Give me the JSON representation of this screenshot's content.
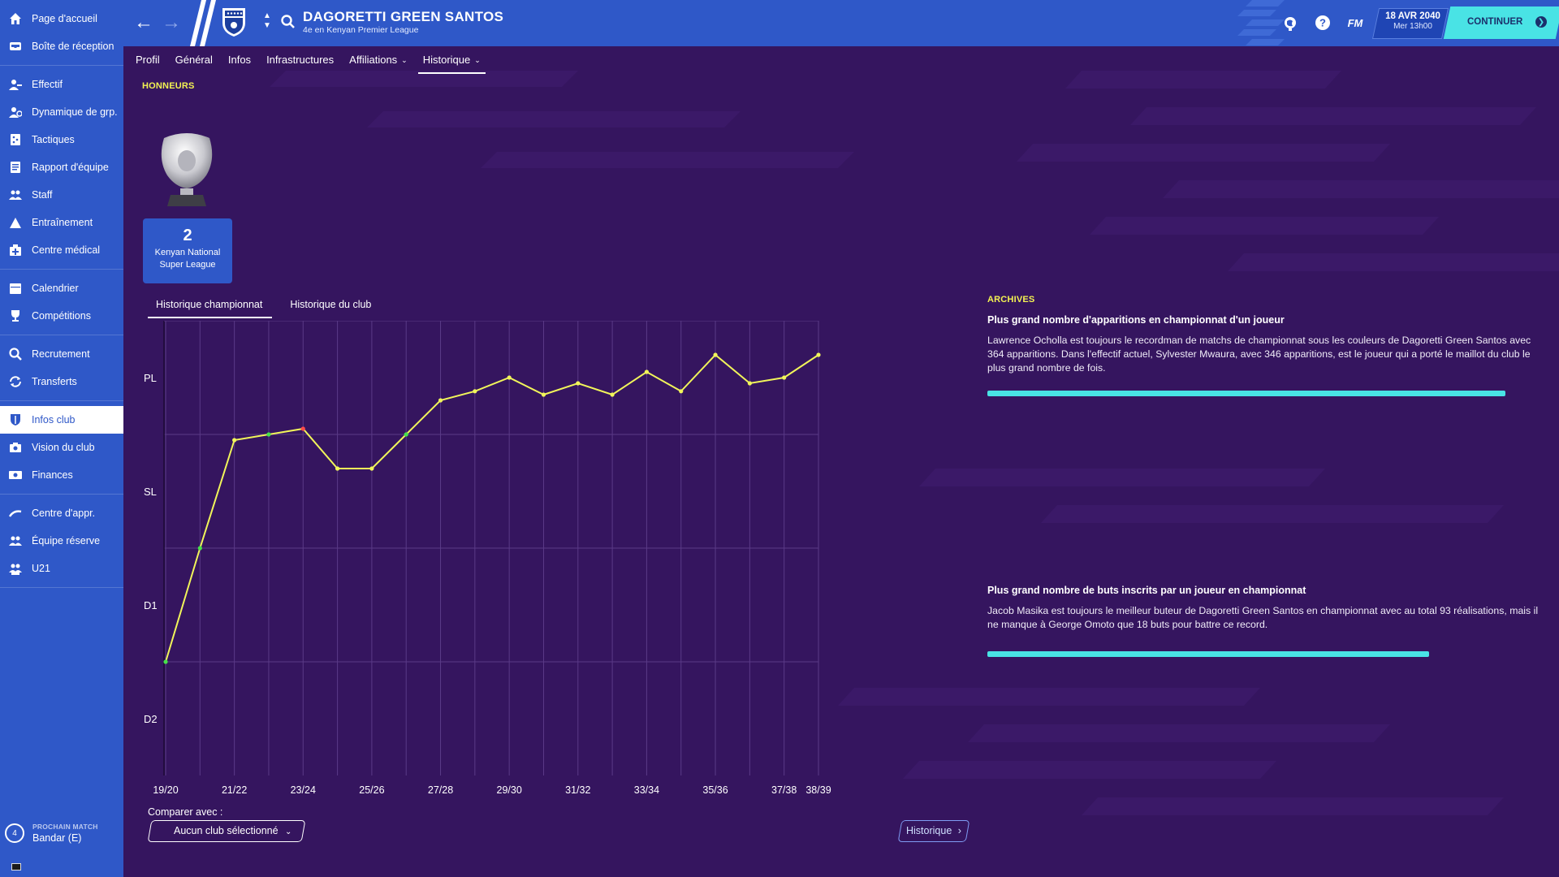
{
  "sidebar": {
    "groups": [
      [
        {
          "label": "Page d'accueil",
          "icon": "home-icon"
        },
        {
          "label": "Boîte de réception",
          "icon": "inbox-icon"
        }
      ],
      [
        {
          "label": "Effectif",
          "icon": "squad-icon"
        },
        {
          "label": "Dynamique de grp.",
          "icon": "dynamics-icon"
        },
        {
          "label": "Tactiques",
          "icon": "tactics-icon"
        },
        {
          "label": "Rapport d'équipe",
          "icon": "report-icon"
        },
        {
          "label": "Staff",
          "icon": "staff-icon"
        },
        {
          "label": "Entraînement",
          "icon": "training-icon"
        },
        {
          "label": "Centre médical",
          "icon": "medical-icon"
        }
      ],
      [
        {
          "label": "Calendrier",
          "icon": "calendar-icon"
        },
        {
          "label": "Compétitions",
          "icon": "trophy-icon"
        }
      ],
      [
        {
          "label": "Recrutement",
          "icon": "scouting-icon"
        },
        {
          "label": "Transferts",
          "icon": "transfers-icon"
        }
      ],
      [
        {
          "label": "Infos club",
          "icon": "club-info-icon",
          "active": true
        },
        {
          "label": "Vision du club",
          "icon": "vision-icon"
        },
        {
          "label": "Finances",
          "icon": "finances-icon"
        }
      ],
      [
        {
          "label": "Centre d'appr.",
          "icon": "academy-icon"
        },
        {
          "label": "Équipe réserve",
          "icon": "reserve-icon"
        },
        {
          "label": "U21",
          "icon": "u21-icon"
        }
      ]
    ],
    "next_match": {
      "label": "PROCHAIN MATCH",
      "opponent": "Bandar (E)",
      "badge": "4"
    }
  },
  "header": {
    "team_name": "DAGORETTI GREEN SANTOS",
    "subtitle": "4e en Kenyan Premier League",
    "fm_label": "FM",
    "date": "18 AVR 2040",
    "time": "Mer 13h00",
    "continue_label": "CONTINUER"
  },
  "subnav": {
    "tabs": [
      {
        "label": "Profil",
        "dropdown": false
      },
      {
        "label": "Général",
        "dropdown": false
      },
      {
        "label": "Infos",
        "dropdown": false
      },
      {
        "label": "Infrastructures",
        "dropdown": false
      },
      {
        "label": "Affiliations",
        "dropdown": true
      },
      {
        "label": "Historique",
        "dropdown": true,
        "active": true
      }
    ]
  },
  "honours": {
    "title": "HONNEURS",
    "count": "2",
    "competition": "Kenyan National Super League"
  },
  "chart_tabs": [
    "Historique championnat",
    "Historique du club"
  ],
  "chart_data": {
    "type": "line",
    "title": "",
    "xlabel": "",
    "ylabel": "",
    "y_levels": [
      "PL",
      "SL",
      "D1",
      "D2"
    ],
    "ylim": [
      0,
      4
    ],
    "x_tick_labels": [
      "19/20",
      "21/22",
      "23/24",
      "25/26",
      "27/28",
      "29/30",
      "31/32",
      "33/34",
      "35/36",
      "37/38",
      "38/39"
    ],
    "x": [
      "19/20",
      "20/21",
      "21/22",
      "22/23",
      "23/24",
      "24/25",
      "25/26",
      "26/27",
      "27/28",
      "28/29",
      "29/30",
      "30/31",
      "31/32",
      "32/33",
      "33/34",
      "34/35",
      "35/36",
      "36/37",
      "37/38",
      "38/39"
    ],
    "series": [
      {
        "values": [
          1.0,
          2.0,
          2.95,
          3.0,
          3.05,
          2.7,
          2.7,
          3.0,
          3.3,
          3.38,
          3.5,
          3.35,
          3.45,
          3.35,
          3.55,
          3.38,
          3.7,
          3.45,
          3.5,
          3.7
        ],
        "marker_colors": [
          "#46e24a",
          "#46e24a",
          "#f1f55a",
          "#46e24a",
          "#ff4b4b",
          "#f1f55a",
          "#f1f55a",
          "#46e24a",
          "#f1f55a",
          "#f1f55a",
          "#f1f55a",
          "#f1f55a",
          "#f1f55a",
          "#f1f55a",
          "#f1f55a",
          "#f1f55a",
          "#f1f55a",
          "#f1f55a",
          "#f1f55a",
          "#f1f55a"
        ]
      }
    ],
    "line_color": "#f1f55a",
    "grid": true
  },
  "compare": {
    "label": "Comparer avec :",
    "value": "Aucun club sélectionné"
  },
  "history_button": "Historique",
  "archives": {
    "title": "ARCHIVES",
    "records": [
      {
        "heading": "Plus grand nombre d'apparitions en championnat d'un joueur",
        "text": "Lawrence Ocholla est toujours le recordman de matchs de championnat sous les couleurs de Dagoretti Green Santos avec 364 apparitions. Dans l'effectif actuel, Sylvester Mwaura, avec 346 apparitions, est le joueur qui a porté le maillot du club le plus grand nombre de fois.",
        "progress": 0.95
      },
      {
        "heading": "Plus grand nombre de buts inscrits par un joueur en championnat",
        "text": "Jacob Masika est toujours le meilleur buteur de Dagoretti Green Santos en championnat avec au total 93 réalisations, mais il ne manque à George Omoto que 18 buts pour battre ce record.",
        "progress": 0.81
      }
    ]
  },
  "colors": {
    "sidebar": "#2f58c8",
    "main_bg": "#35155f",
    "accent": "#49e3e5",
    "highlight": "#f3f252"
  }
}
